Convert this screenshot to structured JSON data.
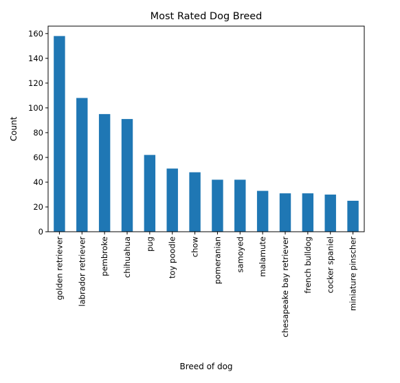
{
  "chart_data": {
    "type": "bar",
    "title": "Most Rated Dog Breed",
    "xlabel": "Breed of dog",
    "ylabel": "Count",
    "categories": [
      "golden retriever",
      "labrador retriever",
      "pembroke",
      "chihuahua",
      "pug",
      "toy poodle",
      "chow",
      "pomeranian",
      "samoyed",
      "malamute",
      "chesapeake bay retriever",
      "french bulldog",
      "cocker spaniel",
      "miniature pinscher"
    ],
    "values": [
      158,
      108,
      95,
      91,
      62,
      51,
      48,
      42,
      42,
      33,
      31,
      31,
      30,
      25
    ],
    "ylim": [
      0,
      166
    ],
    "yticks": [
      0,
      20,
      40,
      60,
      80,
      100,
      120,
      140,
      160
    ],
    "legend": "none",
    "grid": false,
    "bar_color": "#1f77b4",
    "axis_color": "#000000"
  }
}
